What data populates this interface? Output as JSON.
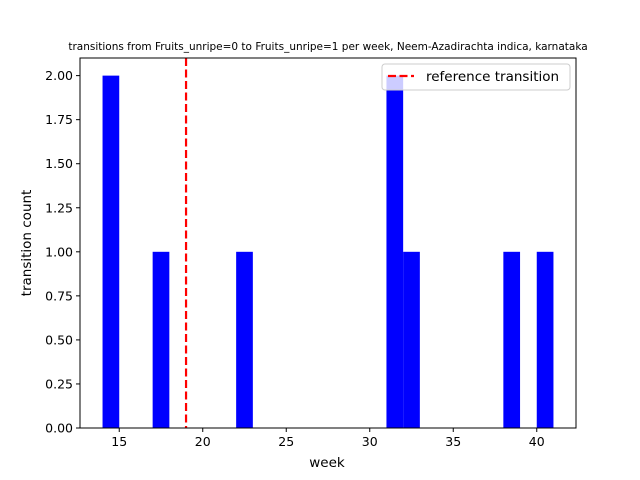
{
  "chart_data": {
    "type": "bar",
    "title": "transitions from Fruits_unripe=0 to Fruits_unripe=1 per week, Neem-Azadirachta indica, karnataka",
    "xlabel": "week",
    "ylabel": "transition count",
    "xlim": [
      12.65,
      42.35
    ],
    "ylim": [
      0,
      2.1
    ],
    "x_ticks": [
      15,
      20,
      25,
      30,
      35,
      40
    ],
    "y_ticks": [
      0.0,
      0.25,
      0.5,
      0.75,
      1.0,
      1.25,
      1.5,
      1.75,
      2.0
    ],
    "y_tick_labels": [
      "0.00",
      "0.25",
      "0.50",
      "0.75",
      "1.00",
      "1.25",
      "1.50",
      "1.75",
      "2.00"
    ],
    "bar_width": 1,
    "bar_color": "#0000ff",
    "bars": [
      {
        "x": 14,
        "value": 2
      },
      {
        "x": 17,
        "value": 1
      },
      {
        "x": 22,
        "value": 1
      },
      {
        "x": 31,
        "value": 2
      },
      {
        "x": 32,
        "value": 1
      },
      {
        "x": 38,
        "value": 1
      },
      {
        "x": 40,
        "value": 1
      }
    ],
    "reference_line": {
      "x": 19,
      "label": "reference transition",
      "color": "#ff0000",
      "style": "dashed"
    },
    "legend": {
      "placement": "top-right",
      "entries": [
        "reference transition"
      ]
    },
    "grid": false
  }
}
